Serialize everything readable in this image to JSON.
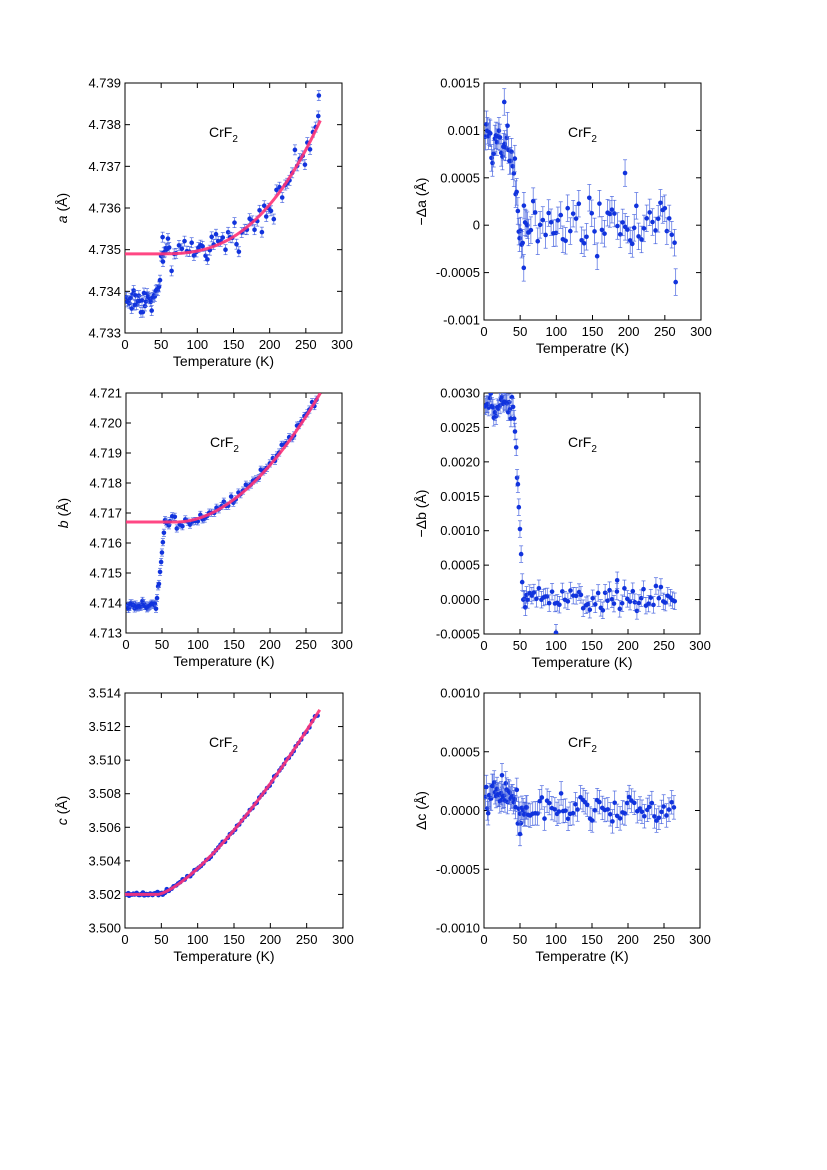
{
  "chart_data": [
    {
      "id": "a",
      "type": "scatter",
      "xlabel": "Temperature (K)",
      "ylabel": "a (Å)",
      "ylabel_var": "a",
      "ylabel_unit": " (Å)",
      "annotation": "CrF",
      "annotation_sub": "2",
      "xlim": [
        0,
        300
      ],
      "ylim": [
        4.733,
        4.739
      ],
      "xticks": [
        0,
        50,
        100,
        150,
        200,
        250,
        300
      ],
      "xtick_labels": [
        "0",
        "50",
        "100",
        "150",
        "200",
        "250",
        "300"
      ],
      "yticks": [
        4.733,
        4.734,
        4.735,
        4.736,
        4.737,
        4.738,
        4.739
      ],
      "ytick_labels": [
        "4.733",
        "4.734",
        "4.735",
        "4.736",
        "4.737",
        "4.738",
        "4.739"
      ],
      "has_fit": true,
      "fit": {
        "base": 4.7349,
        "top": 4.7381,
        "t0": 50,
        "t1": 270,
        "power": 2.6
      },
      "anomaly": {
        "amp": -0.0011,
        "tc": 50
      },
      "noise": 0.00024,
      "err": 0.00012,
      "tmax": 270,
      "outliers": [
        [
          268,
          4.7387
        ],
        [
          52,
          4.7353
        ]
      ]
    },
    {
      "id": "da",
      "type": "scatter",
      "xlabel": "Temperatre (K)",
      "ylabel": "−Δa (Å)",
      "annotation": "CrF",
      "annotation_sub": "2",
      "xlim": [
        0,
        300
      ],
      "ylim": [
        -0.001,
        0.0015
      ],
      "xticks": [
        0,
        50,
        100,
        150,
        200,
        250,
        300
      ],
      "xtick_labels": [
        "0",
        "50",
        "100",
        "150",
        "200",
        "250",
        "300"
      ],
      "yticks": [
        -0.001,
        -0.0005,
        0,
        0.0005,
        0.001,
        0.0015
      ],
      "ytick_labels": [
        "-0.001",
        "-0.0005",
        "0",
        "0.0005",
        "0.001",
        "0.0015"
      ],
      "has_fit": false,
      "fit": {
        "base": 0,
        "top": 0,
        "t0": 50,
        "t1": 270,
        "power": 1
      },
      "anomaly": {
        "amp": 0.0009,
        "tc": 45
      },
      "noise": 0.00019,
      "err": 0.00014,
      "tmax": 265,
      "outliers": [
        [
          265,
          -0.0006
        ],
        [
          55,
          -0.00045
        ],
        [
          195,
          0.00055
        ],
        [
          28,
          0.0013
        ]
      ]
    },
    {
      "id": "b",
      "type": "scatter",
      "xlabel": "Temperature (K)",
      "ylabel": "b (Å)",
      "ylabel_var": "b",
      "ylabel_unit": " (Å)",
      "annotation": "CrF",
      "annotation_sub": "2",
      "xlim": [
        0,
        300
      ],
      "ylim": [
        4.713,
        4.721
      ],
      "xticks": [
        0,
        50,
        100,
        150,
        200,
        250,
        300
      ],
      "xtick_labels": [
        "0",
        "50",
        "100",
        "150",
        "200",
        "250",
        "300"
      ],
      "yticks": [
        4.713,
        4.714,
        4.715,
        4.716,
        4.717,
        4.718,
        4.719,
        4.72,
        4.721
      ],
      "ytick_labels": [
        "4.713",
        "4.714",
        "4.715",
        "4.716",
        "4.717",
        "4.718",
        "4.719",
        "4.720",
        "4.721"
      ],
      "has_fit": true,
      "fit": {
        "base": 4.7167,
        "top": 4.721,
        "t0": 70,
        "t1": 270,
        "power": 1.9
      },
      "anomaly": {
        "amp": -0.0028,
        "tc": 50
      },
      "noise": 0.00012,
      "err": 0.00012,
      "tmax": 265,
      "outliers": []
    },
    {
      "id": "db",
      "type": "scatter",
      "xlabel": "Temperature (K)",
      "ylabel": "−Δb (Å)",
      "annotation": "CrF",
      "annotation_sub": "2",
      "xlim": [
        0,
        300
      ],
      "ylim": [
        -0.0005,
        0.003
      ],
      "xticks": [
        0,
        50,
        100,
        150,
        200,
        250,
        300
      ],
      "xtick_labels": [
        "0",
        "50",
        "100",
        "150",
        "200",
        "250",
        "300"
      ],
      "yticks": [
        -0.0005,
        0,
        0.0005,
        0.001,
        0.0015,
        0.002,
        0.0025,
        0.003
      ],
      "ytick_labels": [
        "-0.0005",
        "0.0000",
        "0.0005",
        "0.0010",
        "0.0015",
        "0.0020",
        "0.0025",
        "0.0030"
      ],
      "has_fit": false,
      "fit": {
        "base": 0,
        "top": 0,
        "t0": 50,
        "t1": 270,
        "power": 1
      },
      "anomaly": {
        "amp": 0.0028,
        "tc": 50
      },
      "noise": 0.00013,
      "err": 0.00012,
      "tmax": 265,
      "outliers": [
        [
          100,
          -0.00048
        ],
        [
          185,
          0.00028
        ]
      ]
    },
    {
      "id": "c",
      "type": "scatter",
      "xlabel": "Temperature (K)",
      "ylabel": "c (Å)",
      "ylabel_var": "c",
      "ylabel_unit": " (Å)",
      "annotation": "CrF",
      "annotation_sub": "2",
      "xlim": [
        0,
        300
      ],
      "ylim": [
        3.5,
        3.514
      ],
      "xticks": [
        0,
        50,
        100,
        150,
        200,
        250,
        300
      ],
      "xtick_labels": [
        "0",
        "50",
        "100",
        "150",
        "200",
        "250",
        "300"
      ],
      "yticks": [
        3.5,
        3.502,
        3.504,
        3.506,
        3.508,
        3.51,
        3.512,
        3.514
      ],
      "ytick_labels": [
        "3.500",
        "3.502",
        "3.504",
        "3.506",
        "3.508",
        "3.510",
        "3.512",
        "3.514"
      ],
      "has_fit": true,
      "fit": {
        "base": 3.502,
        "top": 3.513,
        "t0": 45,
        "t1": 268,
        "power": 1.4
      },
      "anomaly": {
        "amp": 0,
        "tc": 50
      },
      "noise": 8e-05,
      "err": 6e-05,
      "tmax": 268,
      "outliers": []
    },
    {
      "id": "dc",
      "type": "scatter",
      "xlabel": "Temperatre (K)",
      "ylabel": "Δc (Å)",
      "annotation": "CrF",
      "annotation_sub": "2",
      "xlim": [
        0,
        300
      ],
      "ylim": [
        -0.001,
        0.001
      ],
      "xticks": [
        0,
        50,
        100,
        150,
        200,
        250,
        300
      ],
      "xtick_labels": [
        "0",
        "50",
        "100",
        "150",
        "200",
        "250",
        "300"
      ],
      "yticks": [
        -0.001,
        -0.0005,
        0,
        0.0005,
        0.001
      ],
      "ytick_labels": [
        "-0.0010",
        "-0.0005",
        "0.0000",
        "0.0005",
        "0.0010"
      ],
      "has_fit": false,
      "fit": {
        "base": 0,
        "top": 0,
        "t0": 50,
        "t1": 270,
        "power": 1
      },
      "anomaly": {
        "amp": 0.00012,
        "tc": 45
      },
      "noise": 8e-05,
      "err": 0.0001,
      "tmax": 265,
      "outliers": [
        [
          50,
          -0.0002
        ],
        [
          25,
          0.0003
        ]
      ]
    }
  ],
  "colors": {
    "points": "#1133dd",
    "errorbars": "#4b67e0",
    "fit": "#ff3377",
    "axes": "#000000"
  }
}
